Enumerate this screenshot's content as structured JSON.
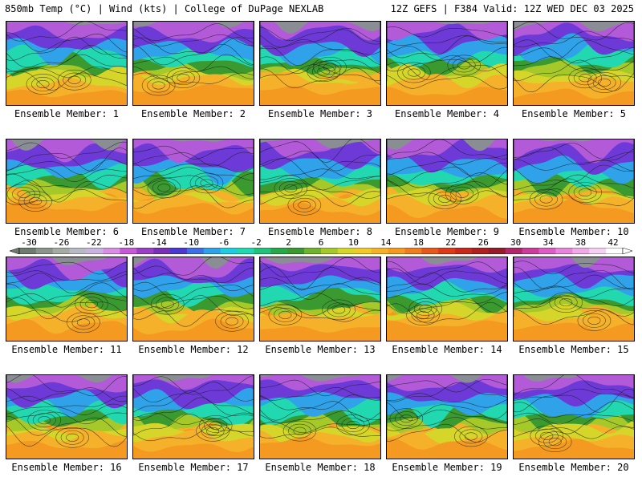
{
  "header": {
    "left_title": "850mb Temp (°C) | Wind (kts) | College of DuPage NEXLAB",
    "right_title": "12Z GEFS | F384 Valid: 12Z WED DEC 03 2025"
  },
  "colorbar": {
    "ticks": [
      "-30",
      "-26",
      "-22",
      "-18",
      "-14",
      "-10",
      "-6",
      "-2",
      "2",
      "6",
      "10",
      "14",
      "18",
      "22",
      "26",
      "30",
      "34",
      "38",
      "42"
    ],
    "colors": [
      "#6e7b6e",
      "#8a948a",
      "#a4aaa4",
      "#b9b9c6",
      "#c9b3e0",
      "#d98ee6",
      "#c65ad6",
      "#9a3fc8",
      "#7a2fb8",
      "#4a3ad2",
      "#3f6fe6",
      "#2fa2ea",
      "#1fcde0",
      "#22d8b0",
      "#23c27b",
      "#27a84a",
      "#3a9a2f",
      "#6fb42c",
      "#a6c92a",
      "#d6d62a",
      "#f2c92a",
      "#f5b12a",
      "#f59a20",
      "#f17e1e",
      "#e8581a",
      "#de3a18",
      "#c9281a",
      "#b01f1f",
      "#951c2a",
      "#b1286a",
      "#cc3c9a",
      "#dd5cc6",
      "#e884dc",
      "#f0aae8",
      "#f6d0f2",
      "#ffffff"
    ]
  },
  "members": [
    {
      "label": "Ensemble Member: 1"
    },
    {
      "label": "Ensemble Member: 2"
    },
    {
      "label": "Ensemble Member: 3"
    },
    {
      "label": "Ensemble Member: 4"
    },
    {
      "label": "Ensemble Member: 5"
    },
    {
      "label": "Ensemble Member: 6"
    },
    {
      "label": "Ensemble Member: 7"
    },
    {
      "label": "Ensemble Member: 8"
    },
    {
      "label": "Ensemble Member: 9"
    },
    {
      "label": "Ensemble Member: 10"
    },
    {
      "label": "Ensemble Member: 11"
    },
    {
      "label": "Ensemble Member: 12"
    },
    {
      "label": "Ensemble Member: 13"
    },
    {
      "label": "Ensemble Member: 14"
    },
    {
      "label": "Ensemble Member: 15"
    },
    {
      "label": "Ensemble Member: 16"
    },
    {
      "label": "Ensemble Member: 17"
    },
    {
      "label": "Ensemble Member: 18"
    },
    {
      "label": "Ensemble Member: 19"
    },
    {
      "label": "Ensemble Member: 20"
    }
  ]
}
